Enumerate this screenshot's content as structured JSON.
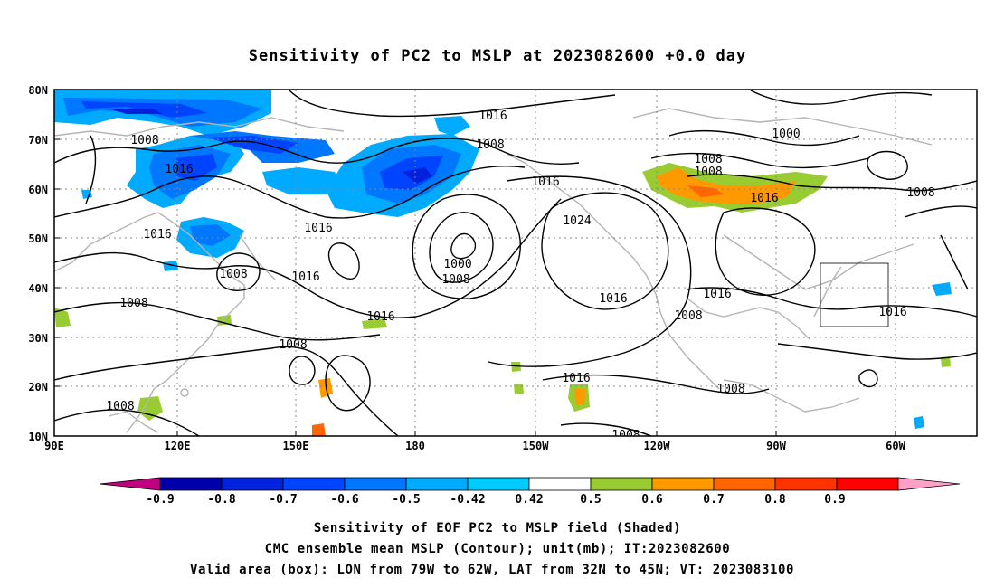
{
  "title": "Sensitivity of PC2 to MSLP at 2023082600 +0.0 day",
  "axes": {
    "y_ticks": [
      "80N",
      "70N",
      "60N",
      "50N",
      "40N",
      "30N",
      "20N",
      "10N"
    ],
    "x_ticks": [
      "90E",
      "120E",
      "150E",
      "180",
      "150W",
      "120W",
      "90W",
      "60W"
    ]
  },
  "contour_labels": [
    {
      "id": "c1",
      "text": "1016"
    },
    {
      "id": "c2",
      "text": "1008"
    },
    {
      "id": "c3",
      "text": "1016"
    },
    {
      "id": "c4",
      "text": "1008"
    },
    {
      "id": "c5",
      "text": "1016"
    },
    {
      "id": "c6",
      "text": "1008"
    },
    {
      "id": "c7",
      "text": "1016"
    },
    {
      "id": "c8",
      "text": "1008"
    },
    {
      "id": "c9",
      "text": "1016"
    },
    {
      "id": "c10",
      "text": "1000"
    },
    {
      "id": "c11",
      "text": "1008"
    },
    {
      "id": "c12",
      "text": "1016"
    },
    {
      "id": "c13",
      "text": "1024"
    },
    {
      "id": "c14",
      "text": "1016"
    },
    {
      "id": "c15",
      "text": "1008"
    },
    {
      "id": "c16",
      "text": "1008"
    },
    {
      "id": "c17",
      "text": "1000"
    },
    {
      "id": "c18",
      "text": "1008"
    },
    {
      "id": "c19",
      "text": "1008"
    },
    {
      "id": "c20",
      "text": "1016"
    },
    {
      "id": "c21",
      "text": "1016"
    },
    {
      "id": "c22",
      "text": "1016"
    },
    {
      "id": "c23",
      "text": "1008"
    },
    {
      "id": "c24",
      "text": "1016"
    },
    {
      "id": "c25",
      "text": "1008"
    },
    {
      "id": "c26",
      "text": "1008"
    },
    {
      "id": "c27",
      "text": "1016"
    },
    {
      "id": "c28",
      "text": "1008"
    }
  ],
  "colorbar": {
    "labels": [
      "-0.9",
      "-0.8",
      "-0.7",
      "-0.6",
      "-0.5",
      "-0.42",
      "0.42",
      "0.5",
      "0.6",
      "0.7",
      "0.8",
      "0.9"
    ],
    "colors": [
      "#c0007f",
      "#0000aa",
      "#0022dd",
      "#0044ff",
      "#0077ff",
      "#00aaff",
      "#00ccff",
      "#ffffff",
      "#99cc33",
      "#ff9900",
      "#ff6600",
      "#ff3300",
      "#ff0000",
      "#ffa0c8"
    ]
  },
  "caption": [
    "Sensitivity of EOF PC2 to MSLP field (Shaded)",
    "CMC ensemble mean MSLP (Contour); unit(mb); IT:2023082600",
    "Valid area (box): LON from 79W to 62W, LAT from 32N to 45N; VT: 2023083100"
  ]
}
